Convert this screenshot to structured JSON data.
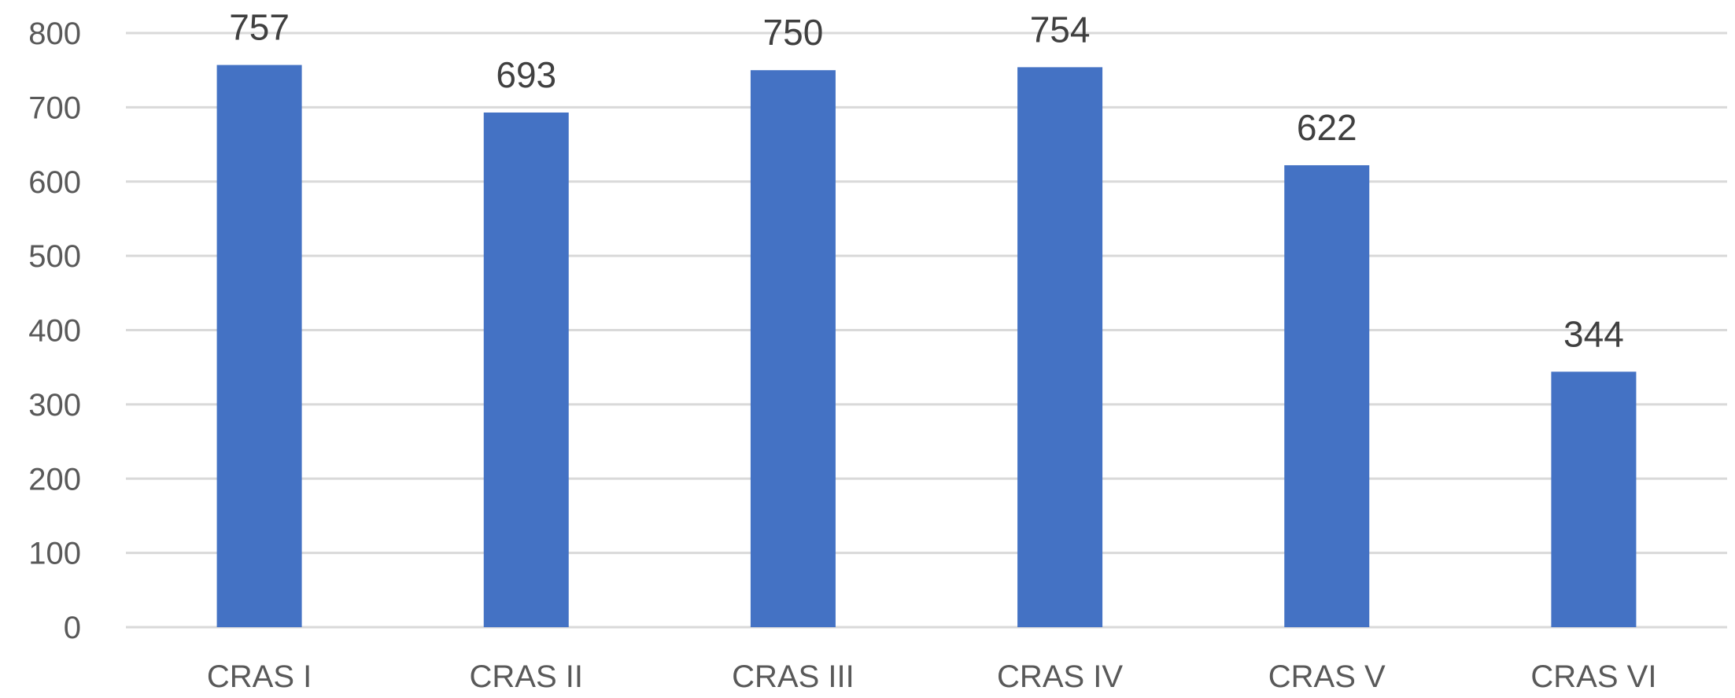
{
  "chart_data": {
    "type": "bar",
    "title": "",
    "xlabel": "",
    "ylabel": "",
    "categories": [
      "CRAS I",
      "CRAS II",
      "CRAS III",
      "CRAS IV",
      "CRAS V",
      "CRAS VI"
    ],
    "values": [
      757,
      693,
      750,
      754,
      622,
      344
    ],
    "data_labels": [
      "757",
      "693",
      "750",
      "754",
      "622",
      "344"
    ],
    "ylim": [
      0,
      800
    ],
    "yticks": [
      0,
      100,
      200,
      300,
      400,
      500,
      600,
      700,
      800
    ],
    "ytick_labels": [
      "0",
      "100",
      "200",
      "300",
      "400",
      "500",
      "600",
      "700",
      "800"
    ],
    "grid": true,
    "legend": "none",
    "bar_color": "#4472C4",
    "grid_color": "#d9d9d9",
    "label_color": "#595959"
  }
}
